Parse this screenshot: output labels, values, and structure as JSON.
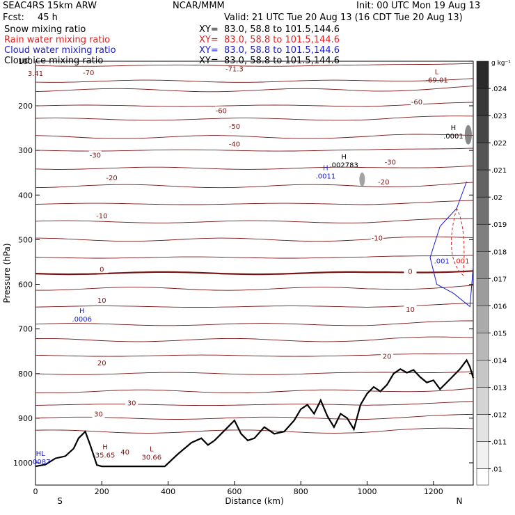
{
  "header": {
    "model": "SEAC4RS 15km ARW",
    "org": "NCAR/MMM",
    "init": "Init: 00 UTC Mon 19 Aug 13",
    "fcst_label": "Fcst:",
    "fcst_value": "45 h",
    "valid": "Valid: 21 UTC Tue 20 Aug 13 (16 CDT Tue 20 Aug 13)"
  },
  "fields": [
    {
      "name": "Snow mixing ratio",
      "xy": "XY=  83.0, 58.8 to 101.5,144.6",
      "color": "#000000"
    },
    {
      "name": "Rain water mixing ratio",
      "xy": "XY=  83.0, 58.8 to 101.5,144.6",
      "color": "#e02020"
    },
    {
      "name": "Cloud water mixing ratio",
      "xy": "XY=  83.0, 58.8 to 101.5,144.6",
      "color": "#1a1ad0"
    },
    {
      "name": "Cloud ice mixing ratio",
      "xy": "XY=  83.0, 58.8 to 101.5,144.6",
      "color": "#000000"
    }
  ],
  "colors": {
    "temperature": "#7a1414",
    "terrain": "#000000",
    "cloud_water": "#1a1ad0",
    "rain_water": "#e02020"
  },
  "chart_data": {
    "type": "line",
    "title": "",
    "xlabel": "Distance (km)",
    "ylabel": "Pressure (hPa)",
    "xlim": [
      0,
      1320
    ],
    "ylim": [
      1010,
      100
    ],
    "x_ticks": [
      0,
      200,
      400,
      600,
      800,
      1000,
      1200
    ],
    "y_ticks": [
      100,
      200,
      300,
      400,
      500,
      600,
      700,
      800,
      900,
      1000
    ],
    "x_end_labels": [
      "S",
      "N"
    ],
    "terrain": {
      "x": [
        0,
        30,
        60,
        90,
        115,
        130,
        150,
        165,
        185,
        200,
        260,
        330,
        390,
        430,
        470,
        500,
        520,
        540,
        560,
        580,
        600,
        620,
        640,
        660,
        690,
        720,
        750,
        780,
        800,
        820,
        840,
        860,
        880,
        900,
        920,
        940,
        960,
        980,
        1000,
        1020,
        1040,
        1060,
        1080,
        1100,
        1120,
        1140,
        1160,
        1180,
        1200,
        1220,
        1240,
        1260,
        1280,
        1300,
        1310,
        1320
      ],
      "p": [
        1008,
        1004,
        990,
        985,
        968,
        945,
        930,
        960,
        1005,
        1008,
        1008,
        1008,
        1008,
        980,
        955,
        945,
        960,
        950,
        935,
        920,
        905,
        935,
        950,
        945,
        920,
        935,
        930,
        905,
        880,
        870,
        890,
        860,
        895,
        920,
        890,
        900,
        925,
        870,
        845,
        830,
        840,
        825,
        800,
        790,
        798,
        792,
        808,
        820,
        815,
        835,
        820,
        805,
        790,
        770,
        785,
        810
      ]
    },
    "isotherm_labels": [
      {
        "x": 160,
        "p": 130,
        "value": "-70"
      },
      {
        "x": 560,
        "p": 215,
        "value": "-60"
      },
      {
        "x": 1150,
        "p": 195,
        "value": "-60"
      },
      {
        "x": 600,
        "p": 250,
        "value": "-50"
      },
      {
        "x": 600,
        "p": 290,
        "value": "-40"
      },
      {
        "x": 180,
        "p": 315,
        "value": "-30"
      },
      {
        "x": 1070,
        "p": 330,
        "value": "-30"
      },
      {
        "x": 230,
        "p": 365,
        "value": "-20"
      },
      {
        "x": 1050,
        "p": 375,
        "value": "-20"
      },
      {
        "x": 200,
        "p": 450,
        "value": "-10"
      },
      {
        "x": 1030,
        "p": 500,
        "value": "-10"
      },
      {
        "x": 200,
        "p": 570,
        "value": "0"
      },
      {
        "x": 1130,
        "p": 575,
        "value": "0"
      },
      {
        "x": 200,
        "p": 640,
        "value": "10"
      },
      {
        "x": 1130,
        "p": 660,
        "value": "10"
      },
      {
        "x": 200,
        "p": 780,
        "value": "20"
      },
      {
        "x": 1060,
        "p": 765,
        "value": "20"
      },
      {
        "x": 190,
        "p": 895,
        "value": "30"
      },
      {
        "x": 290,
        "p": 870,
        "value": "30"
      },
      {
        "x": 270,
        "p": 980,
        "value": "40"
      }
    ],
    "annotations": [
      {
        "x": 1210,
        "p": 145,
        "label": "L",
        "value": "-69.01",
        "color": "#7a1414"
      },
      {
        "x": 1260,
        "p": 270,
        "label": "H",
        "value": ".0001",
        "color": "#000000"
      },
      {
        "x": 930,
        "p": 335,
        "label": "H",
        "value": ".002783",
        "color": "#000000"
      },
      {
        "x": 875,
        "p": 360,
        "label": "H",
        "value": ".0011",
        "color": "#1a1ad0"
      },
      {
        "x": 140,
        "p": 680,
        "label": "H",
        "value": ".0006",
        "color": "#1a1ad0"
      },
      {
        "x": 210,
        "p": 985,
        "label": "H",
        "value": "35.65",
        "color": "#7a1414"
      },
      {
        "x": 350,
        "p": 990,
        "label": "L",
        "value": "30.66",
        "color": "#7a1414"
      },
      {
        "x": 15,
        "p": 1000,
        "label": "HL",
        "value": ".0087",
        "color": "#1a1ad0"
      },
      {
        "x": 1225,
        "p": 550,
        "label": "",
        "value": ".001",
        "color": "#1a1ad0"
      },
      {
        "x": 1285,
        "p": 550,
        "label": "",
        "value": ".001",
        "color": "#e02020"
      },
      {
        "x": 0,
        "p": 130,
        "label": "",
        "value": "3.41",
        "color": "#7a1414"
      },
      {
        "x": 600,
        "p": 120,
        "label": "",
        "value": "-71.3",
        "color": "#7a1414"
      }
    ],
    "colorbar": {
      "unit": "g kg⁻¹",
      "ticks": [
        ".024",
        ".023",
        ".022",
        ".021",
        ".02",
        ".019",
        ".018",
        ".017",
        ".016",
        ".015",
        ".014",
        ".013",
        ".012",
        ".011",
        ".01"
      ],
      "top_color": "#2a2a2a",
      "bottom_color": "#ffffff"
    }
  }
}
